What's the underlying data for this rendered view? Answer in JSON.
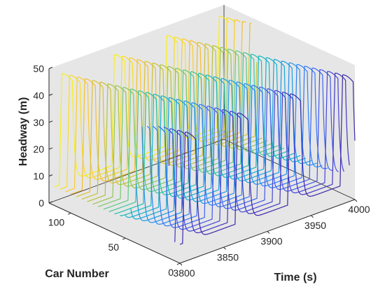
{
  "chart_data": {
    "type": "line",
    "subtype": "3d-waterfall",
    "title": "",
    "xlabel": "Time (s)",
    "ylabel": "Car Number",
    "zlabel": "Headway (m)",
    "xlim": [
      3800,
      4000
    ],
    "ylim": [
      0,
      120
    ],
    "zlim": [
      0,
      50
    ],
    "x_ticks": [
      "3800",
      "3850",
      "3900",
      "3950",
      "4000"
    ],
    "y_ticks": [
      "0",
      "50",
      "100"
    ],
    "z_ticks": [
      "0",
      "10",
      "20",
      "30",
      "40",
      "50"
    ],
    "grid": false,
    "colormap": "parula",
    "colors": {
      "pane": "#e6e6e6",
      "axis": "#262626",
      "low_car": "#3e26a8",
      "mid_car": "#12beb9",
      "high_car": "#f9fb15"
    },
    "series_cars": [
      0,
      5,
      10,
      15,
      20,
      25,
      30,
      35,
      40,
      45,
      50,
      55,
      60,
      65,
      70,
      75,
      80,
      85,
      90,
      95,
      100,
      105,
      110,
      115
    ],
    "wave": {
      "base_headway": 7,
      "peak_headway": 48,
      "period_s": 60,
      "pulse_width_s": 15,
      "first_pulse_time_s_at_car_0": 3803,
      "backward_shift_s_per_car": 0.5
    }
  }
}
